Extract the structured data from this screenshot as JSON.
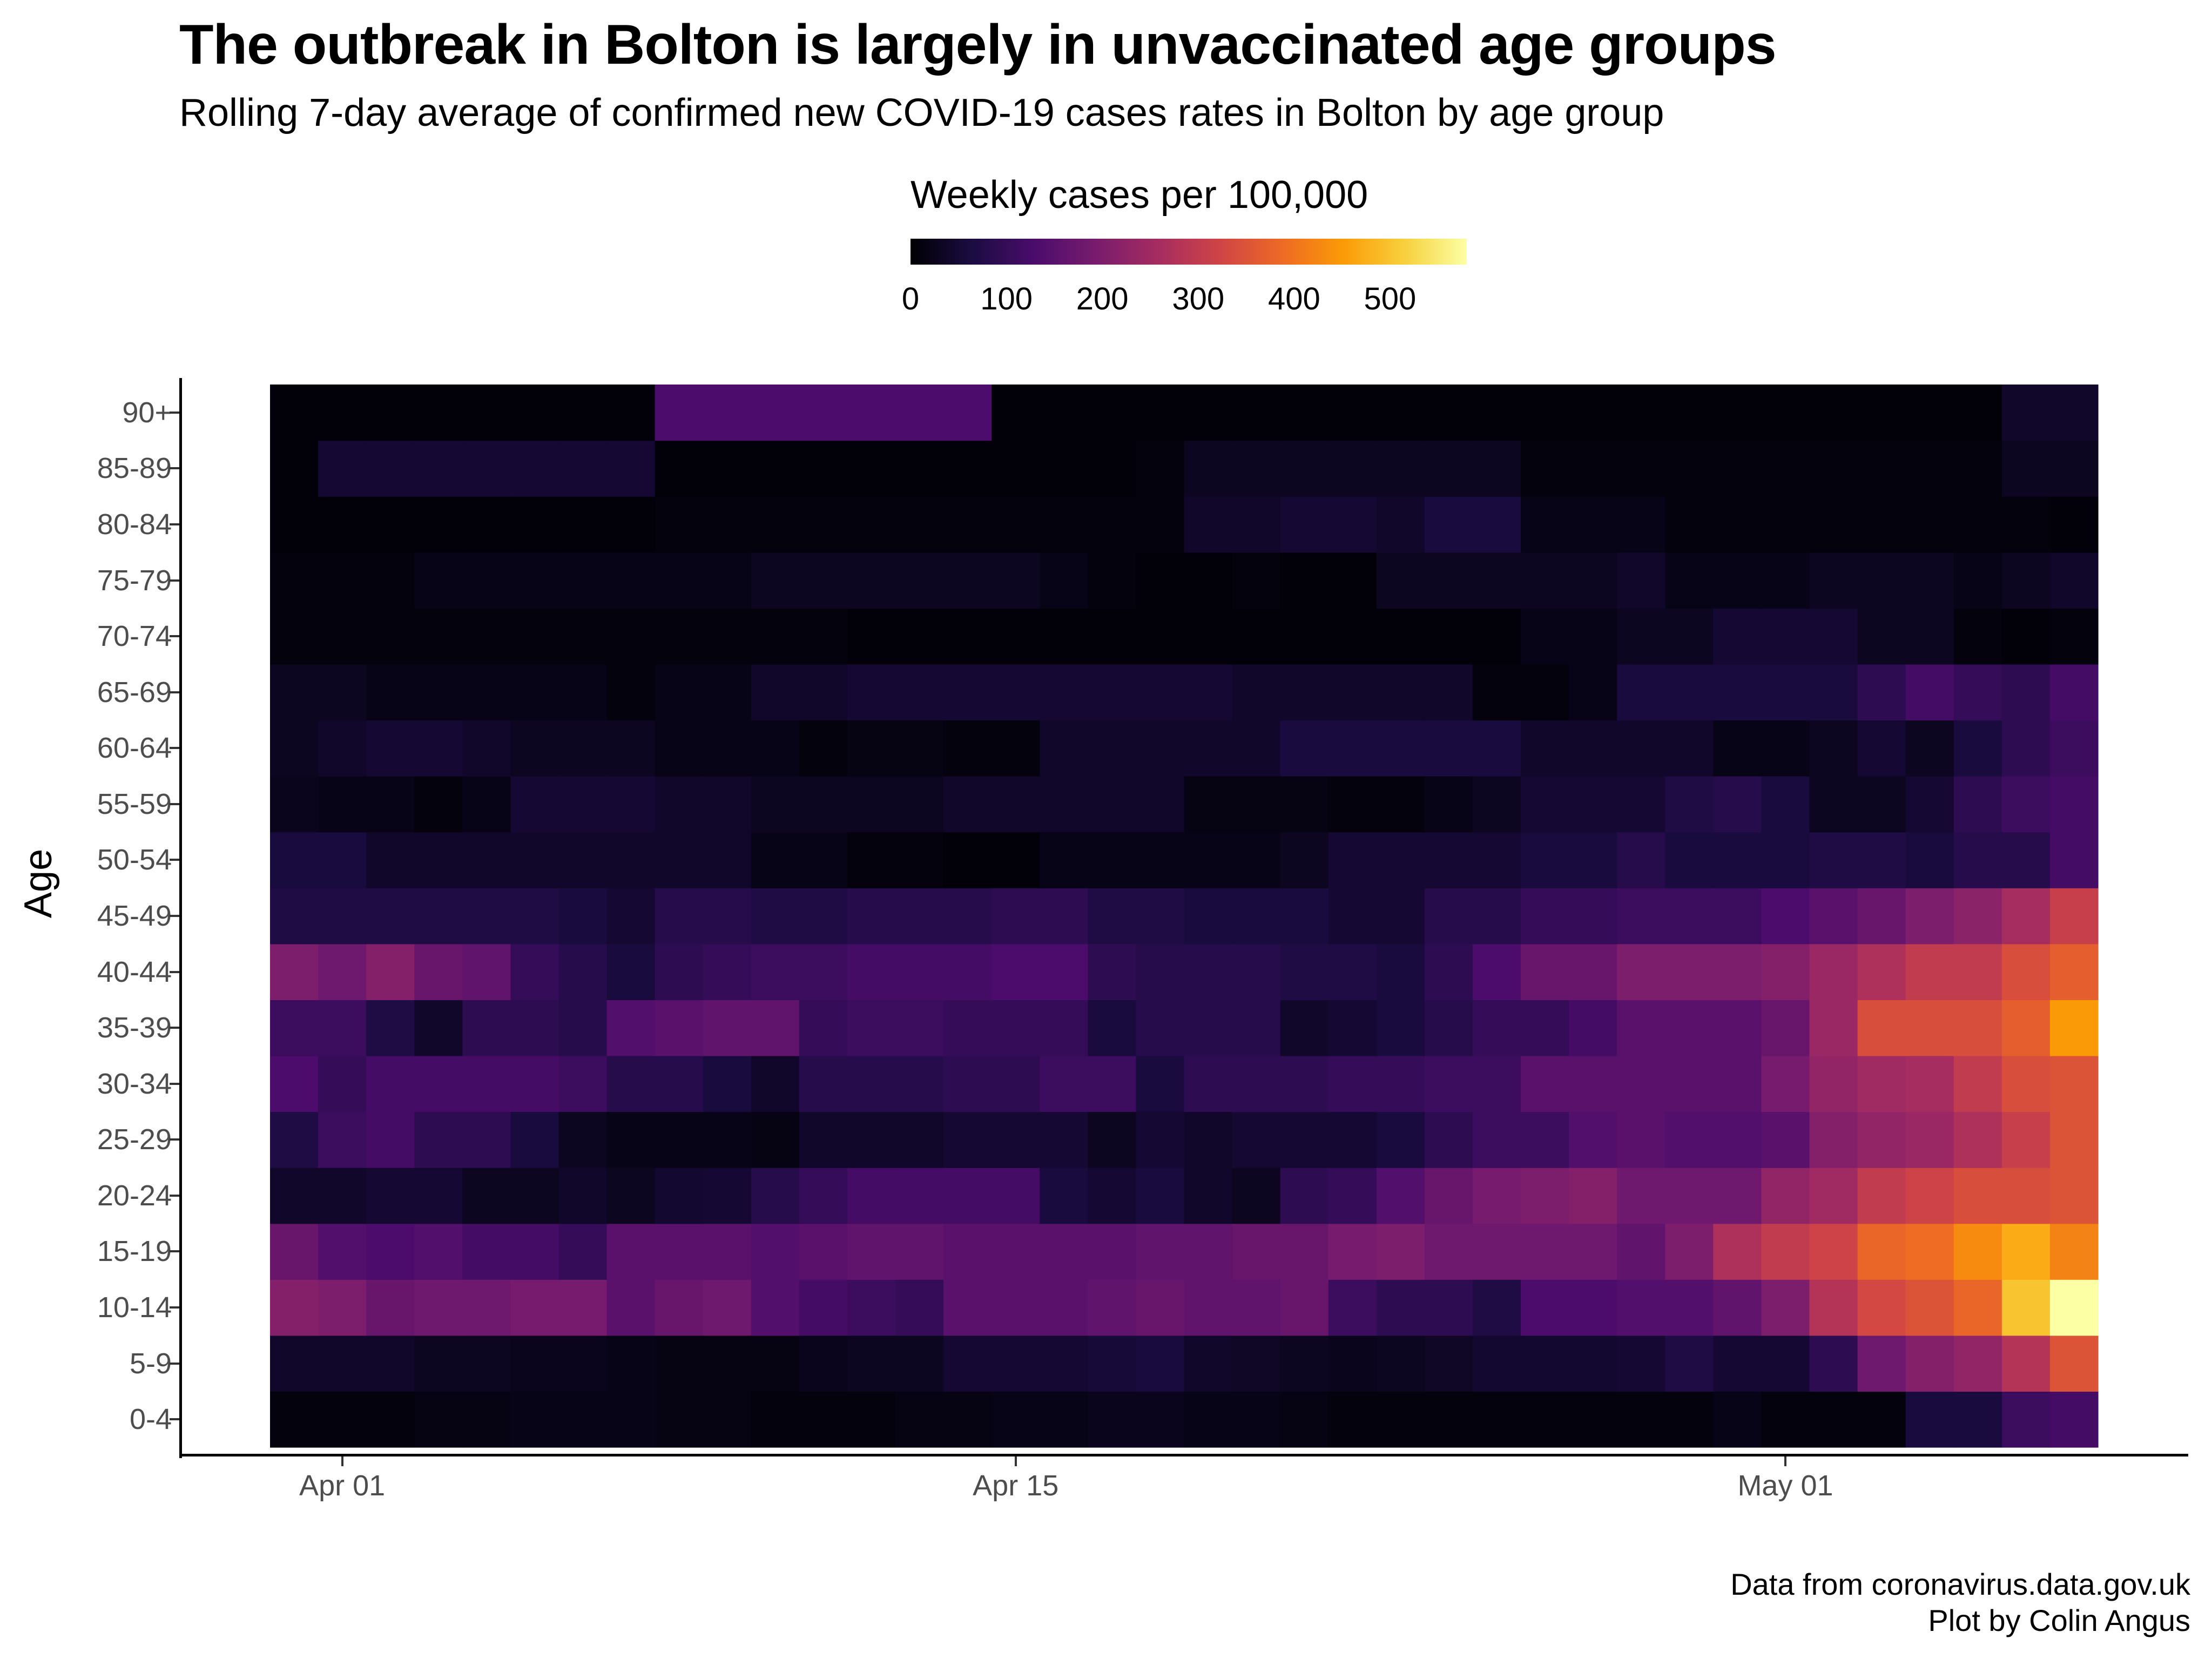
{
  "chart_data": {
    "type": "heatmap",
    "title": "The outbreak in Bolton is largely in unvaccinated age groups",
    "subtitle": "Rolling 7-day average of confirmed new COVID-19 cases rates in Bolton by age group",
    "ylabel": "Age",
    "xlabel": "",
    "caption_line1": "Data from coronavirus.data.gov.uk",
    "caption_line2": "Plot by Colin Angus",
    "legend": {
      "title": "Weekly cases per 100,000",
      "ticks": [
        "0",
        "100",
        "200",
        "300",
        "400",
        "500"
      ],
      "range": [
        0,
        580
      ],
      "placement": "top"
    },
    "colormap": [
      "#000004",
      "#1b0c41",
      "#4a0c6b",
      "#781c6d",
      "#a52c60",
      "#cf4446",
      "#ed6925",
      "#fb9b06",
      "#f7d13d",
      "#fcffa4"
    ],
    "x_start": "2021-03-31",
    "x_end": "2021-05-08",
    "x_ticks": [
      "Apr 01",
      "Apr 15",
      "May 01"
    ],
    "x_tick_dates": [
      "2021-04-01",
      "2021-04-15",
      "2021-05-01"
    ],
    "y_categories": [
      "0-4",
      "5-9",
      "10-14",
      "15-19",
      "20-24",
      "25-29",
      "30-34",
      "35-39",
      "40-44",
      "45-49",
      "50-54",
      "55-59",
      "60-64",
      "65-69",
      "70-74",
      "75-79",
      "80-84",
      "85-89",
      "90+"
    ],
    "values": [
      [
        10,
        10,
        10,
        15,
        15,
        20,
        20,
        20,
        15,
        15,
        10,
        10,
        10,
        15,
        15,
        20,
        20,
        25,
        25,
        20,
        20,
        15,
        10,
        10,
        10,
        10,
        10,
        10,
        10,
        10,
        20,
        10,
        10,
        10,
        60,
        60,
        110,
        120
      ],
      [
        40,
        40,
        40,
        30,
        30,
        25,
        25,
        20,
        15,
        15,
        15,
        25,
        30,
        30,
        50,
        50,
        50,
        55,
        60,
        40,
        35,
        30,
        25,
        30,
        35,
        45,
        45,
        45,
        50,
        70,
        50,
        50,
        90,
        180,
        210,
        230,
        280,
        350
      ],
      [
        210,
        200,
        170,
        180,
        180,
        190,
        190,
        150,
        170,
        180,
        140,
        120,
        110,
        100,
        150,
        150,
        150,
        160,
        170,
        160,
        160,
        170,
        110,
        90,
        90,
        70,
        130,
        130,
        140,
        140,
        160,
        200,
        280,
        330,
        350,
        380,
        500,
        580
      ],
      [
        170,
        140,
        130,
        140,
        120,
        120,
        100,
        150,
        150,
        150,
        140,
        150,
        160,
        160,
        150,
        150,
        150,
        150,
        160,
        160,
        170,
        170,
        190,
        200,
        180,
        180,
        180,
        180,
        160,
        200,
        270,
        300,
        320,
        380,
        390,
        430,
        470,
        420
      ],
      [
        40,
        40,
        50,
        50,
        30,
        30,
        40,
        30,
        45,
        50,
        80,
        100,
        120,
        120,
        120,
        120,
        60,
        50,
        60,
        40,
        30,
        90,
        100,
        140,
        170,
        190,
        200,
        210,
        180,
        180,
        180,
        230,
        250,
        300,
        320,
        340,
        340,
        350
      ],
      [
        70,
        110,
        120,
        90,
        90,
        60,
        30,
        20,
        20,
        20,
        15,
        40,
        40,
        40,
        50,
        50,
        50,
        30,
        50,
        40,
        50,
        50,
        50,
        60,
        90,
        110,
        110,
        140,
        150,
        140,
        140,
        150,
        210,
        230,
        240,
        270,
        310,
        350
      ],
      [
        130,
        100,
        120,
        120,
        120,
        120,
        110,
        80,
        80,
        60,
        40,
        80,
        80,
        80,
        90,
        90,
        110,
        110,
        60,
        90,
        90,
        90,
        100,
        100,
        110,
        110,
        150,
        150,
        150,
        150,
        150,
        190,
        230,
        250,
        260,
        300,
        340,
        350
      ],
      [
        110,
        110,
        70,
        40,
        90,
        90,
        80,
        140,
        150,
        160,
        160,
        100,
        110,
        110,
        100,
        100,
        100,
        60,
        80,
        80,
        80,
        40,
        50,
        60,
        80,
        100,
        100,
        120,
        150,
        150,
        150,
        170,
        240,
        340,
        340,
        340,
        370,
        450
      ],
      [
        200,
        180,
        210,
        170,
        160,
        100,
        80,
        60,
        90,
        100,
        110,
        110,
        120,
        120,
        120,
        130,
        130,
        90,
        80,
        80,
        80,
        70,
        70,
        60,
        90,
        130,
        170,
        170,
        200,
        200,
        200,
        210,
        240,
        270,
        300,
        300,
        340,
        370
      ],
      [
        70,
        70,
        70,
        70,
        70,
        70,
        60,
        50,
        80,
        80,
        70,
        70,
        80,
        80,
        80,
        90,
        90,
        70,
        70,
        60,
        60,
        60,
        50,
        50,
        80,
        80,
        100,
        100,
        110,
        110,
        110,
        130,
        150,
        170,
        200,
        220,
        260,
        310
      ],
      [
        60,
        60,
        40,
        40,
        40,
        40,
        40,
        40,
        40,
        40,
        20,
        20,
        10,
        10,
        5,
        5,
        20,
        20,
        20,
        20,
        20,
        30,
        50,
        50,
        50,
        50,
        60,
        60,
        80,
        60,
        60,
        60,
        70,
        70,
        60,
        80,
        80,
        120
      ],
      [
        25,
        20,
        20,
        10,
        20,
        50,
        50,
        50,
        40,
        40,
        30,
        30,
        30,
        30,
        40,
        40,
        40,
        40,
        40,
        15,
        15,
        15,
        10,
        10,
        20,
        30,
        50,
        50,
        50,
        70,
        80,
        60,
        30,
        30,
        50,
        90,
        110,
        120
      ],
      [
        30,
        40,
        50,
        50,
        40,
        30,
        30,
        30,
        20,
        20,
        20,
        10,
        15,
        15,
        10,
        10,
        40,
        40,
        40,
        40,
        40,
        60,
        60,
        60,
        60,
        60,
        40,
        40,
        40,
        40,
        20,
        20,
        30,
        50,
        30,
        60,
        90,
        110
      ],
      [
        30,
        30,
        20,
        20,
        20,
        20,
        20,
        10,
        20,
        20,
        40,
        40,
        50,
        50,
        50,
        50,
        50,
        50,
        50,
        50,
        40,
        40,
        40,
        40,
        40,
        10,
        10,
        20,
        60,
        60,
        60,
        60,
        60,
        90,
        120,
        100,
        90,
        120
      ],
      [
        10,
        10,
        10,
        10,
        10,
        10,
        10,
        10,
        10,
        10,
        10,
        10,
        5,
        5,
        5,
        5,
        5,
        5,
        5,
        5,
        5,
        5,
        5,
        5,
        5,
        5,
        20,
        20,
        30,
        30,
        50,
        50,
        50,
        30,
        30,
        10,
        5,
        10
      ],
      [
        10,
        10,
        10,
        20,
        20,
        20,
        20,
        20,
        20,
        20,
        30,
        30,
        30,
        30,
        30,
        30,
        20,
        10,
        5,
        5,
        10,
        5,
        5,
        30,
        30,
        30,
        30,
        30,
        40,
        20,
        20,
        20,
        30,
        30,
        30,
        20,
        30,
        40
      ],
      [
        5,
        5,
        5,
        5,
        5,
        5,
        5,
        5,
        10,
        10,
        10,
        10,
        10,
        10,
        10,
        10,
        10,
        10,
        10,
        40,
        40,
        50,
        50,
        40,
        60,
        60,
        20,
        20,
        20,
        10,
        10,
        10,
        10,
        10,
        10,
        10,
        10,
        5
      ],
      [
        5,
        50,
        50,
        50,
        50,
        50,
        50,
        50,
        5,
        5,
        5,
        5,
        5,
        5,
        5,
        5,
        5,
        5,
        10,
        30,
        30,
        30,
        30,
        30,
        30,
        30,
        10,
        10,
        10,
        10,
        10,
        10,
        10,
        10,
        10,
        10,
        30,
        30
      ],
      [
        5,
        5,
        5,
        5,
        5,
        5,
        5,
        5,
        130,
        130,
        130,
        130,
        130,
        130,
        130,
        5,
        5,
        5,
        5,
        5,
        5,
        5,
        5,
        5,
        5,
        5,
        5,
        5,
        5,
        5,
        5,
        5,
        5,
        5,
        5,
        5,
        40,
        40
      ]
    ]
  }
}
